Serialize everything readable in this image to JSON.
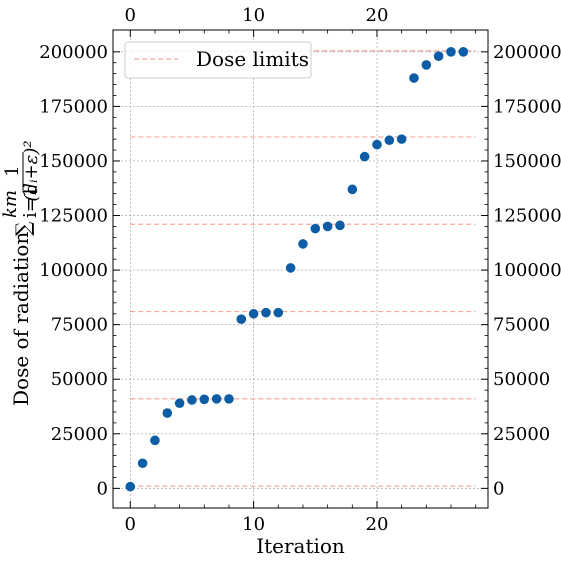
{
  "chart_data": {
    "type": "scatter",
    "title": "",
    "xlabel": "Iteration",
    "ylabel": "Dose of radiation ∑ 1/(dᵢ+ε)²",
    "ylabel_parts": {
      "prefix": "Dose of radiation",
      "sum": "∑",
      "sum_upper": "km",
      "sum_lower": "i=1",
      "numerator": "1",
      "denominator": "(dᵢ+ε)²"
    },
    "xlim": [
      -1.4,
      29.0
    ],
    "ylim": [
      -9000,
      210000
    ],
    "x_ticks": [
      0,
      10,
      20
    ],
    "x_tick_labels": [
      "0",
      "10",
      "20"
    ],
    "y_ticks": [
      0,
      25000,
      50000,
      75000,
      100000,
      125000,
      150000,
      175000,
      200000
    ],
    "y_tick_labels": [
      "0",
      "25000",
      "50000",
      "75000",
      "100000",
      "125000",
      "150000",
      "175000",
      "200000"
    ],
    "grid": true,
    "legend_position": "top-left",
    "legend": [
      {
        "label": "Dose limits",
        "style": "dashed",
        "color": "#f4a79c"
      }
    ],
    "series": [
      {
        "marker": "circle",
        "color": "#0c5da5",
        "x": [
          0,
          1,
          2,
          3,
          4,
          5,
          6,
          7,
          8,
          9,
          10,
          11,
          12,
          13,
          14,
          15,
          16,
          17,
          18,
          19,
          20,
          21,
          22,
          23,
          24,
          25,
          26,
          27
        ],
        "y": [
          800,
          11500,
          22000,
          34500,
          39000,
          40500,
          40800,
          41000,
          41000,
          77500,
          80000,
          80500,
          80500,
          101000,
          112000,
          119000,
          120000,
          120500,
          137000,
          152000,
          157500,
          159500,
          160000,
          188000,
          194000,
          198000,
          200000,
          200000
        ]
      }
    ],
    "dose_limits": [
      1000,
      41000,
      81000,
      121000,
      161000,
      200500
    ]
  }
}
